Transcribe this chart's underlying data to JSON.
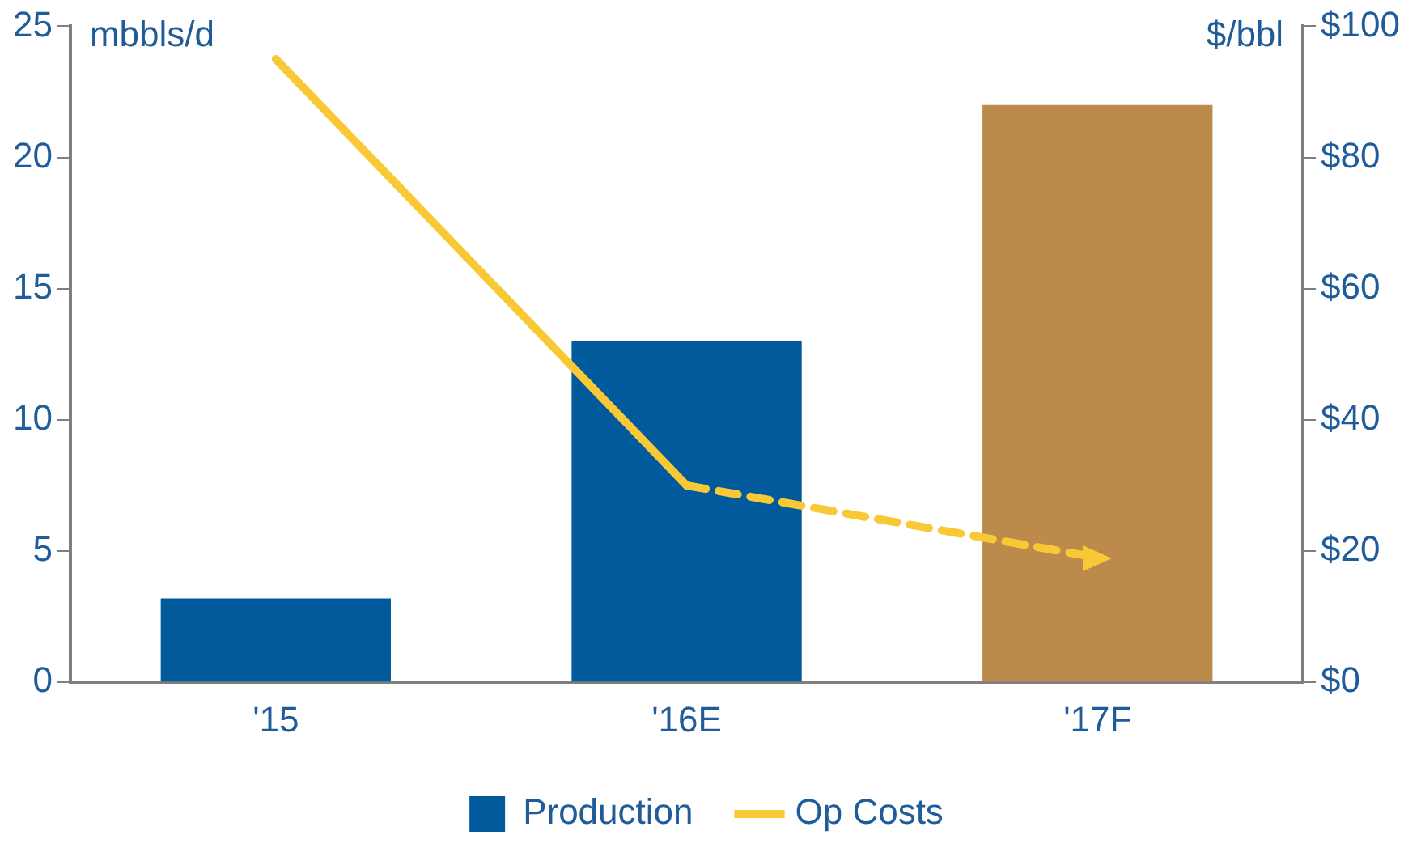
{
  "chart_data": {
    "type": "bar",
    "categories": [
      "'15",
      "'16E",
      "'17F"
    ],
    "ylabel": "mbbls/d",
    "y2label": "$/bbl",
    "series": [
      {
        "name": "Production",
        "colors": [
          "#005a9c",
          "#005a9c",
          "#bc8a4a"
        ],
        "color": "#005a9c",
        "values": [
          3.2,
          13,
          22
        ]
      },
      {
        "name": "Op Costs",
        "type": "line",
        "axis": "y2",
        "color": "#f9c935",
        "line_style": "solid",
        "values": [
          95,
          30,
          null
        ]
      },
      {
        "type": "line",
        "axis": "y2",
        "color": "#f9c935",
        "line_style": "dashed",
        "values": [
          null,
          30,
          19
        ]
      }
    ],
    "ylim": [
      0,
      25
    ],
    "yticks": [
      0,
      5,
      10,
      15,
      20,
      25
    ],
    "y2lim": [
      0,
      100
    ],
    "y2ticks": [
      {
        "value": 0,
        "label": "$0"
      },
      {
        "value": 20,
        "label": "$20"
      },
      {
        "value": 40,
        "label": "$40"
      },
      {
        "value": 60,
        "label": "$60"
      },
      {
        "value": 80,
        "label": "$80"
      },
      {
        "value": 100,
        "label": "$100"
      }
    ],
    "grid": false,
    "legend": "bottom"
  }
}
